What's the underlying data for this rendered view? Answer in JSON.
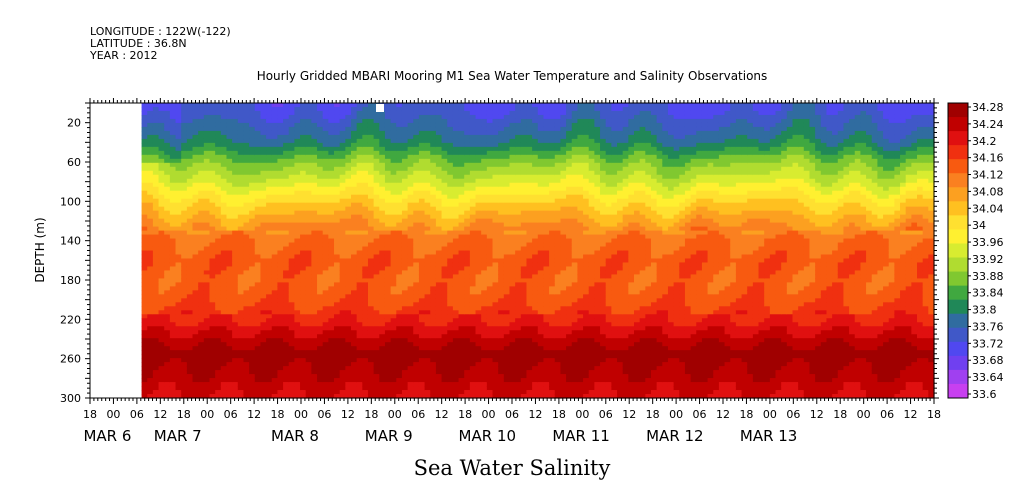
{
  "header": {
    "longitude": "LONGITUDE : 122W(-122)",
    "latitude": "LATITUDE : 36.8N",
    "year": "YEAR : 2012"
  },
  "chart_data": {
    "type": "heatmap",
    "title": "Hourly Gridded MBARI Mooring M1 Sea Water Temperature and Salinity Observations",
    "xlabel": "Sea Water Salinity",
    "ylabel": "DEPTH (m)",
    "ylim": [
      300,
      0
    ],
    "y_ticks": [
      20,
      60,
      100,
      140,
      180,
      220,
      260,
      300
    ],
    "x_hour_ticks": [
      "18",
      "00",
      "06",
      "12",
      "18",
      "00",
      "06",
      "12",
      "18",
      "00",
      "06",
      "12",
      "18",
      "00",
      "06",
      "12",
      "18",
      "00",
      "06",
      "12",
      "18",
      "00",
      "06",
      "12",
      "18",
      "00",
      "06",
      "12",
      "18",
      "00",
      "06",
      "12",
      "18",
      "00",
      "06",
      "12",
      "18"
    ],
    "x_date_labels": [
      "MAR  6",
      "MAR  7",
      "MAR  8",
      "MAR  9",
      "MAR 10",
      "MAR 11",
      "MAR 12",
      "MAR 13"
    ],
    "x_date_hour_index": [
      1,
      4,
      9,
      13,
      17,
      21,
      25,
      29
    ],
    "data_start_hour_index": 2.2,
    "colorbar": {
      "labels": [
        "34.28",
        "34.24",
        "34.2",
        "34.16",
        "34.12",
        "34.08",
        "34.04",
        "34",
        "33.96",
        "33.92",
        "33.88",
        "33.84",
        "33.8",
        "33.76",
        "33.72",
        "33.68",
        "33.64",
        "33.6"
      ],
      "colors": [
        "#a00000",
        "#c00000",
        "#e01010",
        "#f03010",
        "#f85a10",
        "#fa8020",
        "#fca020",
        "#ffc020",
        "#ffe030",
        "#fff030",
        "#d8ec30",
        "#b0dc30",
        "#80c830",
        "#40a840",
        "#208858",
        "#306ca0",
        "#4058c8",
        "#5048f0",
        "#7040f0",
        "#a040f0",
        "#c840f0"
      ]
    },
    "depth_profile": [
      {
        "depth": 5,
        "value": 33.73
      },
      {
        "depth": 20,
        "value": 33.76
      },
      {
        "depth": 40,
        "value": 33.8
      },
      {
        "depth": 60,
        "value": 33.88
      },
      {
        "depth": 80,
        "value": 33.94
      },
      {
        "depth": 100,
        "value": 34.01
      },
      {
        "depth": 120,
        "value": 34.07
      },
      {
        "depth": 140,
        "value": 34.12
      },
      {
        "depth": 160,
        "value": 34.14
      },
      {
        "depth": 180,
        "value": 34.13
      },
      {
        "depth": 200,
        "value": 34.14
      },
      {
        "depth": 220,
        "value": 34.18
      },
      {
        "depth": 240,
        "value": 34.23
      },
      {
        "depth": 255,
        "value": 34.27
      },
      {
        "depth": 270,
        "value": 34.25
      },
      {
        "depth": 300,
        "value": 34.21
      }
    ]
  }
}
